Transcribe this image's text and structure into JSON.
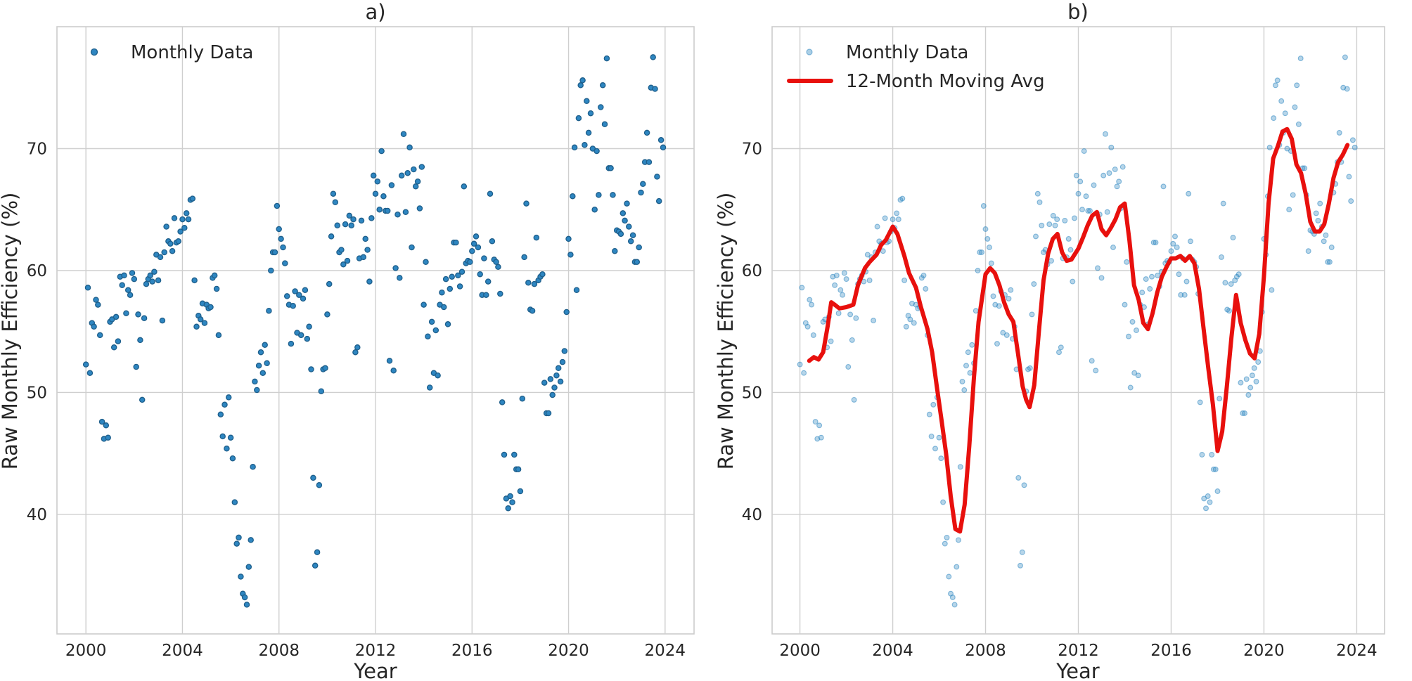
{
  "chart_data": [
    {
      "type": "scatter",
      "panel": "a)",
      "title": "a)",
      "xlabel": "Year",
      "ylabel": "Raw Monthly Efficiency (%)",
      "xlim": [
        1998.8,
        2025.2
      ],
      "ylim": [
        30.2,
        80.0
      ],
      "xticks": [
        2000,
        2004,
        2008,
        2012,
        2016,
        2020,
        2024
      ],
      "yticks": [
        40,
        50,
        60,
        70
      ],
      "grid": true,
      "legend_position": "top-left",
      "colors": {
        "points": "#2e86c1",
        "points_edge": "#1f5f8b"
      },
      "series": [
        {
          "name": "Monthly Data",
          "x": [
            2000.0,
            2000.083,
            2000.167,
            2000.25,
            2000.333,
            2000.417,
            2000.5,
            2000.583,
            2000.667,
            2000.75,
            2000.833,
            2000.917,
            2001.0,
            2001.083,
            2001.167,
            2001.25,
            2001.333,
            2001.417,
            2001.5,
            2001.583,
            2001.667,
            2001.75,
            2001.833,
            2001.917,
            2002.0,
            2002.083,
            2002.167,
            2002.25,
            2002.333,
            2002.417,
            2002.5,
            2002.583,
            2002.667,
            2002.75,
            2002.833,
            2002.917,
            2003.0,
            2003.083,
            2003.167,
            2003.25,
            2003.333,
            2003.417,
            2003.5,
            2003.583,
            2003.667,
            2003.75,
            2003.833,
            2003.917,
            2004.0,
            2004.083,
            2004.167,
            2004.25,
            2004.333,
            2004.417,
            2004.5,
            2004.583,
            2004.667,
            2004.75,
            2004.833,
            2004.917,
            2005.0,
            2005.083,
            2005.167,
            2005.25,
            2005.333,
            2005.417,
            2005.5,
            2005.583,
            2005.667,
            2005.75,
            2005.833,
            2005.917,
            2006.0,
            2006.083,
            2006.167,
            2006.25,
            2006.333,
            2006.417,
            2006.5,
            2006.583,
            2006.667,
            2006.75,
            2006.833,
            2006.917,
            2007.0,
            2007.083,
            2007.167,
            2007.25,
            2007.333,
            2007.417,
            2007.5,
            2007.583,
            2007.667,
            2007.75,
            2007.833,
            2007.917,
            2008.0,
            2008.083,
            2008.167,
            2008.25,
            2008.333,
            2008.417,
            2008.5,
            2008.583,
            2008.667,
            2008.75,
            2008.833,
            2008.917,
            2009.0,
            2009.083,
            2009.167,
            2009.25,
            2009.333,
            2009.417,
            2009.5,
            2009.583,
            2009.667,
            2009.75,
            2009.833,
            2009.917,
            2010.0,
            2010.083,
            2010.167,
            2010.25,
            2010.333,
            2010.417,
            2010.5,
            2010.583,
            2010.667,
            2010.75,
            2010.833,
            2010.917,
            2011.0,
            2011.083,
            2011.167,
            2011.25,
            2011.333,
            2011.417,
            2011.5,
            2011.583,
            2011.667,
            2011.75,
            2011.833,
            2011.917,
            2012.0,
            2012.083,
            2012.167,
            2012.25,
            2012.333,
            2012.417,
            2012.5,
            2012.583,
            2012.667,
            2012.75,
            2012.833,
            2012.917,
            2013.0,
            2013.083,
            2013.167,
            2013.25,
            2013.333,
            2013.417,
            2013.5,
            2013.583,
            2013.667,
            2013.75,
            2013.833,
            2013.917,
            2014.0,
            2014.083,
            2014.167,
            2014.25,
            2014.333,
            2014.417,
            2014.5,
            2014.583,
            2014.667,
            2014.75,
            2014.833,
            2014.917,
            2015.0,
            2015.083,
            2015.167,
            2015.25,
            2015.333,
            2015.417,
            2015.5,
            2015.583,
            2015.667,
            2015.75,
            2015.833,
            2015.917,
            2016.0,
            2016.083,
            2016.167,
            2016.25,
            2016.333,
            2016.417,
            2016.5,
            2016.583,
            2016.667,
            2016.75,
            2016.833,
            2016.917,
            2017.0,
            2017.083,
            2017.167,
            2017.25,
            2017.333,
            2017.417,
            2017.5,
            2017.583,
            2017.667,
            2017.75,
            2017.833,
            2017.917,
            2018.0,
            2018.083,
            2018.167,
            2018.25,
            2018.333,
            2018.417,
            2018.5,
            2018.583,
            2018.667,
            2018.75,
            2018.833,
            2018.917,
            2019.0,
            2019.083,
            2019.167,
            2019.25,
            2019.333,
            2019.417,
            2019.5,
            2019.583,
            2019.667,
            2019.75,
            2019.833,
            2019.917,
            2020.0,
            2020.083,
            2020.167,
            2020.25,
            2020.333,
            2020.417,
            2020.5,
            2020.583,
            2020.667,
            2020.75,
            2020.833,
            2020.917,
            2021.0,
            2021.083,
            2021.167,
            2021.25,
            2021.333,
            2021.417,
            2021.5,
            2021.583,
            2021.667,
            2021.75,
            2021.833,
            2021.917,
            2022.0,
            2022.083,
            2022.167,
            2022.25,
            2022.333,
            2022.417,
            2022.5,
            2022.583,
            2022.667,
            2022.75,
            2022.833,
            2022.917,
            2023.0,
            2023.083,
            2023.167,
            2023.25,
            2023.333,
            2023.417,
            2023.5,
            2023.583,
            2023.667,
            2023.75,
            2023.833,
            2023.917
          ],
          "y": [
            52.3,
            58.6,
            51.6,
            55.7,
            55.4,
            57.6,
            57.2,
            54.7,
            47.6,
            46.2,
            47.3,
            46.3,
            55.8,
            56.0,
            53.7,
            56.2,
            54.2,
            59.5,
            58.8,
            59.6,
            56.5,
            58.4,
            58.0,
            59.8,
            59.3,
            52.1,
            56.4,
            54.3,
            49.4,
            56.1,
            58.9,
            59.3,
            59.6,
            59.1,
            59.9,
            61.3,
            59.2,
            61.1,
            55.9,
            61.5,
            63.6,
            62.4,
            62.2,
            61.6,
            64.3,
            62.3,
            62.4,
            63.2,
            64.2,
            63.5,
            64.7,
            64.2,
            65.8,
            65.9,
            59.2,
            55.4,
            56.3,
            56.0,
            57.3,
            55.7,
            57.2,
            56.9,
            57.0,
            59.4,
            59.6,
            58.5,
            54.7,
            48.2,
            46.4,
            49.0,
            45.4,
            49.6,
            46.3,
            44.6,
            41.0,
            37.6,
            38.1,
            34.9,
            33.5,
            33.2,
            32.6,
            35.7,
            37.9,
            43.9,
            50.9,
            50.2,
            52.2,
            53.3,
            51.6,
            53.9,
            52.4,
            56.7,
            60.0,
            61.5,
            61.5,
            65.3,
            63.4,
            62.6,
            61.9,
            60.6,
            57.9,
            57.2,
            54.0,
            57.1,
            58.3,
            54.9,
            58.0,
            54.7,
            57.7,
            58.4,
            54.4,
            55.4,
            51.9,
            43.0,
            35.8,
            36.9,
            42.4,
            50.1,
            51.9,
            52.0,
            56.4,
            58.9,
            62.8,
            66.3,
            65.6,
            63.7,
            61.5,
            61.7,
            60.5,
            63.8,
            60.8,
            64.5,
            63.7,
            64.2,
            53.3,
            53.7,
            61.0,
            64.1,
            61.1,
            62.6,
            61.7,
            59.1,
            64.3,
            67.8,
            66.3,
            67.3,
            65.0,
            69.8,
            66.1,
            64.9,
            64.9,
            52.6,
            67.0,
            51.8,
            60.2,
            64.6,
            59.4,
            67.8,
            71.2,
            64.8,
            68.0,
            70.1,
            61.9,
            68.3,
            66.9,
            67.3,
            65.1,
            68.5,
            57.2,
            60.7,
            54.6,
            50.4,
            55.8,
            51.6,
            55.1,
            51.4,
            57.2,
            58.2,
            57.0,
            59.3,
            55.6,
            58.5,
            59.5,
            62.3,
            62.3,
            59.6,
            58.7,
            59.9,
            66.9,
            60.6,
            60.8,
            60.7,
            61.6,
            62.2,
            62.8,
            61.9,
            59.7,
            58.0,
            61.0,
            58.0,
            59.1,
            66.3,
            62.4,
            60.9,
            60.7,
            60.3,
            58.1,
            49.2,
            44.9,
            41.3,
            40.5,
            41.5,
            41.0,
            44.9,
            43.7,
            43.7,
            41.9,
            49.5,
            61.1,
            65.5,
            59.0,
            56.8,
            56.7,
            58.9,
            62.7,
            59.2,
            59.5,
            59.7,
            50.8,
            48.3,
            48.3,
            51.1,
            49.8,
            50.4,
            51.4,
            52.0,
            50.9,
            52.5,
            53.4,
            56.6,
            62.6,
            61.3,
            66.1,
            70.1,
            58.4,
            72.5,
            75.2,
            75.6,
            70.3,
            73.9,
            71.3,
            72.9,
            70.0,
            65.0,
            69.8,
            66.2,
            73.4,
            75.2,
            72.0,
            77.4,
            68.4,
            68.4,
            66.2,
            61.6,
            63.3,
            63.2,
            63.0,
            64.7,
            64.1,
            65.5,
            63.6,
            62.4,
            62.9,
            60.7,
            60.7,
            61.9,
            66.4,
            67.1,
            68.9,
            71.3,
            68.9,
            75.0,
            77.5,
            74.9,
            67.7,
            65.7,
            70.7,
            70.1
          ]
        }
      ]
    },
    {
      "type": "line",
      "panel": "b)",
      "title": "b)",
      "xlabel": "Year",
      "ylabel": "Raw Monthly Efficiency (%)",
      "xlim": [
        1998.8,
        2025.2
      ],
      "ylim": [
        30.2,
        80.0
      ],
      "xticks": [
        2000,
        2004,
        2008,
        2012,
        2016,
        2020,
        2024
      ],
      "yticks": [
        40,
        50,
        60,
        70
      ],
      "grid": true,
      "legend_position": "top-left",
      "colors": {
        "points": "#2e86c1",
        "line": "#e8100d"
      },
      "series": [
        {
          "name": "Monthly Data",
          "kind": "scatter",
          "source_panel": "a)"
        },
        {
          "name": "12-Month Moving Avg",
          "kind": "line",
          "x": [
            2000.4,
            2000.6,
            2000.8,
            2001.0,
            2001.2,
            2001.35,
            2001.5,
            2001.7,
            2002.0,
            2002.3,
            2002.5,
            2002.8,
            2003.0,
            2003.3,
            2003.5,
            2003.7,
            2004.0,
            2004.2,
            2004.5,
            2004.7,
            2005.0,
            2005.2,
            2005.5,
            2005.7,
            2005.9,
            2006.1,
            2006.3,
            2006.5,
            2006.7,
            2006.9,
            2007.1,
            2007.3,
            2007.5,
            2007.7,
            2008.0,
            2008.2,
            2008.4,
            2008.6,
            2008.8,
            2009.0,
            2009.2,
            2009.4,
            2009.6,
            2009.75,
            2009.9,
            2010.1,
            2010.3,
            2010.5,
            2010.7,
            2010.9,
            2011.1,
            2011.3,
            2011.5,
            2011.7,
            2012.0,
            2012.2,
            2012.4,
            2012.6,
            2012.8,
            2013.0,
            2013.2,
            2013.4,
            2013.6,
            2013.8,
            2014.0,
            2014.2,
            2014.4,
            2014.6,
            2014.8,
            2015.0,
            2015.2,
            2015.4,
            2015.6,
            2015.8,
            2016.0,
            2016.2,
            2016.4,
            2016.6,
            2016.8,
            2017.0,
            2017.2,
            2017.4,
            2017.6,
            2017.8,
            2018.0,
            2018.2,
            2018.4,
            2018.6,
            2018.8,
            2019.0,
            2019.2,
            2019.4,
            2019.6,
            2019.8,
            2020.0,
            2020.2,
            2020.4,
            2020.6,
            2020.8,
            2021.0,
            2021.2,
            2021.4,
            2021.6,
            2021.8,
            2022.0,
            2022.2,
            2022.4,
            2022.6,
            2022.8,
            2023.0,
            2023.2,
            2023.4,
            2023.6
          ],
          "y": [
            52.6,
            52.9,
            52.7,
            53.3,
            55.5,
            57.4,
            57.2,
            56.9,
            57.0,
            57.2,
            58.8,
            60.2,
            60.7,
            61.3,
            62.1,
            62.5,
            63.6,
            63.0,
            61.2,
            59.8,
            58.6,
            57.1,
            55.2,
            53.3,
            50.5,
            47.8,
            45.0,
            41.5,
            38.8,
            38.6,
            40.8,
            45.6,
            51.2,
            55.8,
            59.7,
            60.2,
            59.8,
            58.8,
            57.4,
            56.4,
            55.8,
            53.2,
            50.5,
            49.4,
            48.8,
            50.6,
            55.0,
            59.2,
            61.4,
            62.6,
            63.0,
            61.5,
            60.8,
            60.9,
            61.8,
            62.7,
            63.7,
            64.5,
            64.8,
            63.4,
            62.9,
            63.5,
            64.2,
            65.2,
            65.5,
            62.5,
            58.8,
            57.6,
            55.7,
            55.2,
            56.5,
            58.2,
            59.5,
            60.3,
            61.0,
            61.0,
            61.2,
            60.8,
            61.2,
            60.6,
            58.5,
            55.2,
            52.0,
            49.0,
            45.2,
            46.8,
            50.5,
            54.5,
            58.0,
            55.7,
            54.3,
            53.2,
            52.8,
            54.8,
            59.5,
            65.5,
            69.2,
            70.2,
            71.4,
            71.6,
            70.8,
            68.7,
            68.0,
            66.3,
            64.0,
            63.2,
            63.2,
            63.8,
            65.5,
            67.6,
            68.9,
            69.5,
            70.3
          ]
        }
      ]
    }
  ],
  "panels": [
    {
      "title": "a)",
      "xlabel": "Year",
      "ylabel": "Raw Monthly Efficiency (%)",
      "xtick_labels": [
        "2000",
        "2004",
        "2008",
        "2012",
        "2016",
        "2020",
        "2024"
      ],
      "ytick_labels": [
        "40",
        "50",
        "60",
        "70"
      ],
      "legend": [
        "Monthly Data"
      ]
    },
    {
      "title": "b)",
      "xlabel": "Year",
      "ylabel": "Raw Monthly Efficiency (%)",
      "xtick_labels": [
        "2000",
        "2004",
        "2008",
        "2012",
        "2016",
        "2020",
        "2024"
      ],
      "ytick_labels": [
        "40",
        "50",
        "60",
        "70"
      ],
      "legend": [
        "Monthly Data",
        "12-Month Moving Avg"
      ]
    }
  ]
}
